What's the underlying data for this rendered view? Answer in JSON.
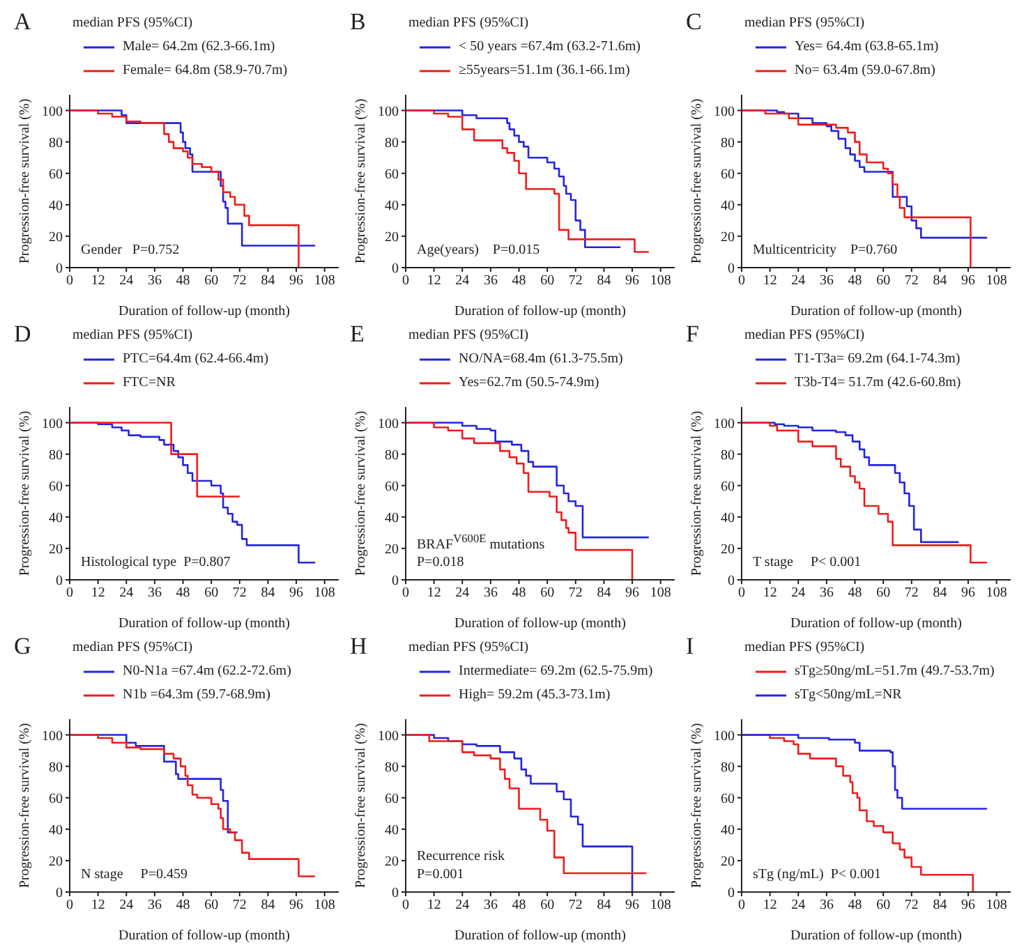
{
  "chart_data": [
    {
      "type": "step",
      "title": "A",
      "subtitle": "median PFS (95%CI)",
      "xlabel": "Duration of follow-up (month)",
      "ylabel": "Progression-free survival (%)",
      "xlim": [
        0,
        114
      ],
      "ylim": [
        0,
        110
      ],
      "xticks": [
        0,
        12,
        24,
        36,
        48,
        60,
        72,
        84,
        96,
        108
      ],
      "yticks": [
        0,
        20,
        40,
        60,
        80,
        100
      ],
      "legend": "top",
      "annotations": [
        "Gender   P=0.752"
      ],
      "series": [
        {
          "name": "Male= 64.2m (62.3-66.1m)",
          "color": "#2424e0",
          "x": [
            0,
            22,
            24,
            47,
            48,
            49,
            51,
            52,
            64,
            65,
            66,
            67,
            73,
            104
          ],
          "values": [
            100,
            97,
            92,
            86,
            80,
            76,
            72,
            61,
            52,
            42,
            38,
            28,
            14,
            14
          ]
        },
        {
          "name": "Female= 64.8m (58.9-70.7m)",
          "color": "#f01c1c",
          "x": [
            0,
            12,
            18,
            24,
            30,
            40,
            42,
            44,
            48,
            50,
            52,
            56,
            60,
            63,
            65,
            68,
            70,
            74,
            76,
            97
          ],
          "values": [
            100,
            98,
            96,
            93,
            92,
            85,
            80,
            76,
            74,
            70,
            66,
            64,
            61,
            56,
            48,
            45,
            40,
            33,
            27,
            0
          ]
        }
      ]
    },
    {
      "type": "step",
      "title": "B",
      "subtitle": "median PFS (95%CI)",
      "xlabel": "Duration of follow-up (month)",
      "ylabel": "Progression-free survival (%)",
      "xlim": [
        0,
        114
      ],
      "ylim": [
        0,
        110
      ],
      "xticks": [
        0,
        12,
        24,
        36,
        48,
        60,
        72,
        84,
        96,
        108
      ],
      "yticks": [
        0,
        20,
        40,
        60,
        80,
        100
      ],
      "legend": "top",
      "annotations": [
        "Age(years)    P=0.015"
      ],
      "series": [
        {
          "name": "< 50 years =67.4m (63.2-71.6m)",
          "color": "#2424e0",
          "x": [
            0,
            24,
            30,
            43,
            44,
            46,
            48,
            50,
            52,
            60,
            63,
            65,
            67,
            68,
            70,
            72,
            74,
            76,
            91
          ],
          "values": [
            100,
            97,
            95,
            92,
            88,
            84,
            80,
            77,
            70,
            67,
            63,
            58,
            52,
            47,
            43,
            30,
            24,
            13,
            13
          ]
        },
        {
          "name": "≥55years=51.1m (36.1-66.1m)",
          "color": "#f01c1c",
          "x": [
            0,
            12,
            18,
            24,
            29,
            41,
            43,
            46,
            48,
            51,
            63,
            65,
            69,
            97,
            103
          ],
          "values": [
            100,
            98,
            96,
            88,
            81,
            76,
            73,
            68,
            60,
            50,
            47,
            24,
            18,
            10,
            10
          ]
        }
      ]
    },
    {
      "type": "step",
      "title": "C",
      "subtitle": "median PFS (95%CI)",
      "xlabel": "Duration of follow-up (month)",
      "ylabel": "Progression-free survival (%)",
      "xlim": [
        0,
        114
      ],
      "ylim": [
        0,
        110
      ],
      "xticks": [
        0,
        12,
        24,
        36,
        48,
        60,
        72,
        84,
        96,
        108
      ],
      "yticks": [
        0,
        20,
        40,
        60,
        80,
        100
      ],
      "legend": "top",
      "annotations": [
        "Multicentricity    P=0.760"
      ],
      "series": [
        {
          "name": "Yes= 64.4m (63.8-65.1m)",
          "color": "#2424e0",
          "x": [
            0,
            15,
            18,
            24,
            30,
            36,
            38,
            41,
            44,
            46,
            48,
            50,
            52,
            64,
            70,
            72,
            74,
            76,
            104
          ],
          "values": [
            100,
            99,
            98,
            95,
            92,
            90,
            87,
            82,
            76,
            72,
            68,
            64,
            61,
            45,
            39,
            30,
            25,
            19,
            19
          ]
        },
        {
          "name": "No= 63.4m (59.0-67.8m)",
          "color": "#f01c1c",
          "x": [
            0,
            10,
            20,
            24,
            40,
            45,
            48,
            50,
            53,
            60,
            62,
            64,
            66,
            67,
            69,
            97
          ],
          "values": [
            100,
            98,
            95,
            91,
            89,
            86,
            80,
            72,
            67,
            63,
            60,
            53,
            45,
            38,
            32,
            0
          ]
        }
      ]
    },
    {
      "type": "step",
      "title": "D",
      "subtitle": "median PFS (95%CI)",
      "xlabel": "Duration of follow-up (month)",
      "ylabel": "Progression-free survival (%)",
      "xlim": [
        0,
        114
      ],
      "ylim": [
        0,
        110
      ],
      "xticks": [
        0,
        12,
        24,
        36,
        48,
        60,
        72,
        84,
        96,
        108
      ],
      "yticks": [
        0,
        20,
        40,
        60,
        80,
        100
      ],
      "legend": "top",
      "annotations": [
        "Histological type  P=0.807"
      ],
      "series": [
        {
          "name": "PTC=64.4m (62.4-66.4m)",
          "color": "#2424e0",
          "x": [
            0,
            12,
            18,
            22,
            25,
            30,
            38,
            40,
            44,
            46,
            48,
            50,
            52,
            60,
            64,
            65,
            67,
            69,
            71,
            73,
            75,
            97,
            104
          ],
          "values": [
            100,
            99,
            97,
            95,
            92,
            91,
            89,
            86,
            82,
            78,
            73,
            68,
            63,
            60,
            55,
            46,
            42,
            37,
            35,
            26,
            22,
            11,
            11
          ]
        },
        {
          "name": "FTC=NR",
          "color": "#f01c1c",
          "x": [
            0,
            43,
            54,
            72
          ],
          "values": [
            100,
            80,
            53,
            53
          ]
        }
      ]
    },
    {
      "type": "step",
      "title": "E",
      "subtitle": "median PFS (95%CI)",
      "xlabel": "Duration of follow-up (month)",
      "ylabel": "Progression-free survival (%)",
      "xlim": [
        0,
        114
      ],
      "ylim": [
        0,
        110
      ],
      "xticks": [
        0,
        12,
        24,
        36,
        48,
        60,
        72,
        84,
        96,
        108
      ],
      "yticks": [
        0,
        20,
        40,
        60,
        80,
        100
      ],
      "legend": "top",
      "annotations": [
        "BRAF$^{V600E}$ mutations",
        "P=0.018"
      ],
      "series": [
        {
          "name": "NO/NA=68.4m (61.3-75.5m)",
          "color": "#2424e0",
          "x": [
            0,
            24,
            30,
            36,
            38,
            45,
            49,
            52,
            54,
            64,
            67,
            69,
            72,
            75,
            103
          ],
          "values": [
            100,
            98,
            96,
            95,
            88,
            86,
            82,
            75,
            72,
            60,
            55,
            50,
            47,
            27,
            27
          ]
        },
        {
          "name": "Yes=62.7m (50.5-74.9m)",
          "color": "#f01c1c",
          "x": [
            0,
            12,
            18,
            24,
            29,
            40,
            44,
            47,
            50,
            52,
            61,
            64,
            66,
            68,
            69,
            72,
            96
          ],
          "values": [
            100,
            97,
            95,
            90,
            87,
            82,
            78,
            74,
            68,
            56,
            53,
            43,
            38,
            33,
            30,
            19,
            0
          ]
        }
      ]
    },
    {
      "type": "step",
      "title": "F",
      "subtitle": "median PFS (95%CI)",
      "xlabel": "Duration of follow-up (month)",
      "ylabel": "Progression-free survival (%)",
      "xlim": [
        0,
        114
      ],
      "ylim": [
        0,
        110
      ],
      "xticks": [
        0,
        12,
        24,
        36,
        48,
        60,
        72,
        84,
        96,
        108
      ],
      "yticks": [
        0,
        20,
        40,
        60,
        80,
        100
      ],
      "legend": "top",
      "annotations": [
        "T stage     P< 0.001"
      ],
      "series": [
        {
          "name": "T1-T3a= 69.2m (64.1-74.3m)",
          "color": "#2424e0",
          "x": [
            0,
            14,
            18,
            24,
            30,
            40,
            44,
            47,
            50,
            52,
            54,
            65,
            67,
            69,
            71,
            73,
            76,
            92
          ],
          "values": [
            100,
            99,
            98,
            97,
            95,
            94,
            92,
            88,
            83,
            78,
            73,
            68,
            62,
            55,
            47,
            32,
            24,
            24
          ]
        },
        {
          "name": "T3b-T4= 51.7m (42.6-60.8m)",
          "color": "#f01c1c",
          "x": [
            0,
            12,
            15,
            24,
            30,
            40,
            42,
            46,
            48,
            50,
            52,
            58,
            62,
            64,
            97,
            104
          ],
          "values": [
            100,
            98,
            95,
            88,
            85,
            77,
            72,
            66,
            62,
            58,
            47,
            42,
            37,
            22,
            11,
            11
          ]
        }
      ]
    },
    {
      "type": "step",
      "title": "G",
      "subtitle": "median PFS (95%CI)",
      "xlabel": "Duration of follow-up (month)",
      "ylabel": "Progression-free survival (%)",
      "xlim": [
        0,
        114
      ],
      "ylim": [
        0,
        110
      ],
      "xticks": [
        0,
        12,
        24,
        36,
        48,
        60,
        72,
        84,
        96,
        108
      ],
      "yticks": [
        0,
        20,
        40,
        60,
        80,
        100
      ],
      "legend": "top",
      "annotations": [
        "N stage     P=0.459"
      ],
      "series": [
        {
          "name": "N0-N1a =67.4m (62.2-72.6m)",
          "color": "#2424e0",
          "x": [
            0,
            24,
            28,
            40,
            45,
            46,
            64,
            65,
            67,
            71
          ],
          "values": [
            100,
            95,
            93,
            83,
            75,
            72,
            65,
            58,
            38,
            38
          ]
        },
        {
          "name": "N1b =64.3m (59.7-68.9m)",
          "color": "#f01c1c",
          "x": [
            0,
            12,
            18,
            24,
            30,
            40,
            44,
            47,
            49,
            50,
            52,
            54,
            60,
            63,
            64,
            65,
            68,
            70,
            73,
            76,
            97,
            104
          ],
          "values": [
            100,
            98,
            95,
            92,
            91,
            88,
            85,
            80,
            74,
            68,
            62,
            60,
            56,
            53,
            47,
            40,
            38,
            33,
            25,
            21,
            10,
            10
          ]
        }
      ]
    },
    {
      "type": "step",
      "title": "H",
      "subtitle": "median PFS (95%CI)",
      "xlabel": "Duration of follow-up (month)",
      "ylabel": "Progression-free survival (%)",
      "xlim": [
        0,
        114
      ],
      "ylim": [
        0,
        110
      ],
      "xticks": [
        0,
        12,
        24,
        36,
        48,
        60,
        72,
        84,
        96,
        108
      ],
      "yticks": [
        0,
        20,
        40,
        60,
        80,
        100
      ],
      "legend": "top",
      "annotations": [
        "Recurrence risk",
        "P=0.001"
      ],
      "series": [
        {
          "name": "Intermediate= 69.2m (62.5-75.9m)",
          "color": "#2424e0",
          "x": [
            0,
            12,
            18,
            24,
            30,
            40,
            46,
            49,
            51,
            53,
            64,
            67,
            70,
            73,
            75,
            96
          ],
          "values": [
            100,
            98,
            96,
            94,
            93,
            89,
            85,
            78,
            74,
            69,
            64,
            59,
            48,
            43,
            29,
            0
          ]
        },
        {
          "name": "High= 59.2m (45.3-73.1m)",
          "color": "#f01c1c",
          "x": [
            0,
            10,
            24,
            29,
            36,
            40,
            42,
            44,
            48,
            57,
            60,
            63,
            67,
            102
          ],
          "values": [
            100,
            96,
            89,
            87,
            85,
            78,
            72,
            66,
            53,
            46,
            39,
            22,
            12,
            12
          ]
        }
      ]
    },
    {
      "type": "step",
      "title": "I",
      "subtitle": "median PFS (95%CI)",
      "xlabel": "Duration of follow-up (month)",
      "ylabel": "Progression-free survival (%)",
      "xlim": [
        0,
        114
      ],
      "ylim": [
        0,
        110
      ],
      "xticks": [
        0,
        12,
        24,
        36,
        48,
        60,
        72,
        84,
        96,
        108
      ],
      "yticks": [
        0,
        20,
        40,
        60,
        80,
        100
      ],
      "legend": "top",
      "annotations": [
        "sTg (ng/mL)  P< 0.001"
      ],
      "series": [
        {
          "name": "sTg≥50ng/mL=51.7m (49.7-53.7m)",
          "color": "#f01c1c",
          "x": [
            0,
            12,
            18,
            22,
            24,
            29,
            40,
            43,
            46,
            47,
            49,
            50,
            53,
            56,
            60,
            64,
            67,
            69,
            72,
            76,
            98
          ],
          "values": [
            100,
            98,
            96,
            94,
            88,
            85,
            80,
            74,
            70,
            63,
            60,
            52,
            45,
            42,
            38,
            31,
            27,
            22,
            16,
            11,
            0
          ]
        },
        {
          "name": "sTg<50ng/mL=NR",
          "color": "#2424e0",
          "x": [
            0,
            24,
            37,
            48,
            50,
            63,
            64,
            65,
            66,
            68,
            104
          ],
          "values": [
            100,
            98,
            97,
            95,
            90,
            89,
            80,
            65,
            60,
            53,
            53
          ]
        }
      ]
    }
  ]
}
